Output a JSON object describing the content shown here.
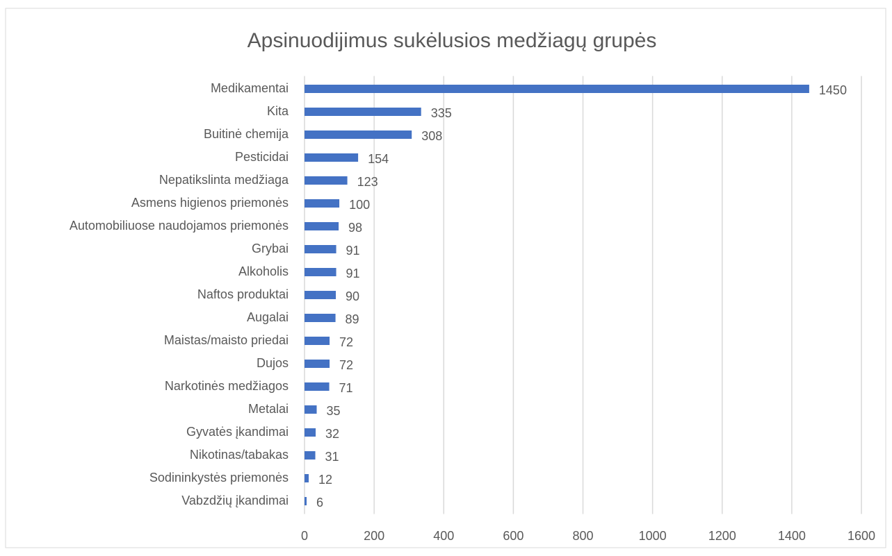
{
  "chart_data": {
    "type": "bar",
    "orientation": "horizontal",
    "title": "Apsinuodijimus sukėlusios medžiagų grupės",
    "categories": [
      "Medikamentai",
      "Kita",
      "Buitinė chemija",
      "Pesticidai",
      "Nepatikslinta medžiaga",
      "Asmens higienos priemonės",
      "Automobiliuose naudojamos priemonės",
      "Grybai",
      "Alkoholis",
      "Naftos produktai",
      "Augalai",
      "Maistas/maisto priedai",
      "Dujos",
      "Narkotinės medžiagos",
      "Metalai",
      "Gyvatės įkandimai",
      "Nikotinas/tabakas",
      "Sodininkystės priemonės",
      "Vabzdžių įkandimai"
    ],
    "values": [
      1450,
      335,
      308,
      154,
      123,
      100,
      98,
      91,
      91,
      90,
      89,
      72,
      72,
      71,
      35,
      32,
      31,
      12,
      6
    ],
    "color": "#4472c4",
    "xlim": [
      0,
      1600
    ],
    "xticks": [
      0,
      200,
      400,
      600,
      800,
      1000,
      1200,
      1400,
      1600
    ],
    "grid": true
  }
}
